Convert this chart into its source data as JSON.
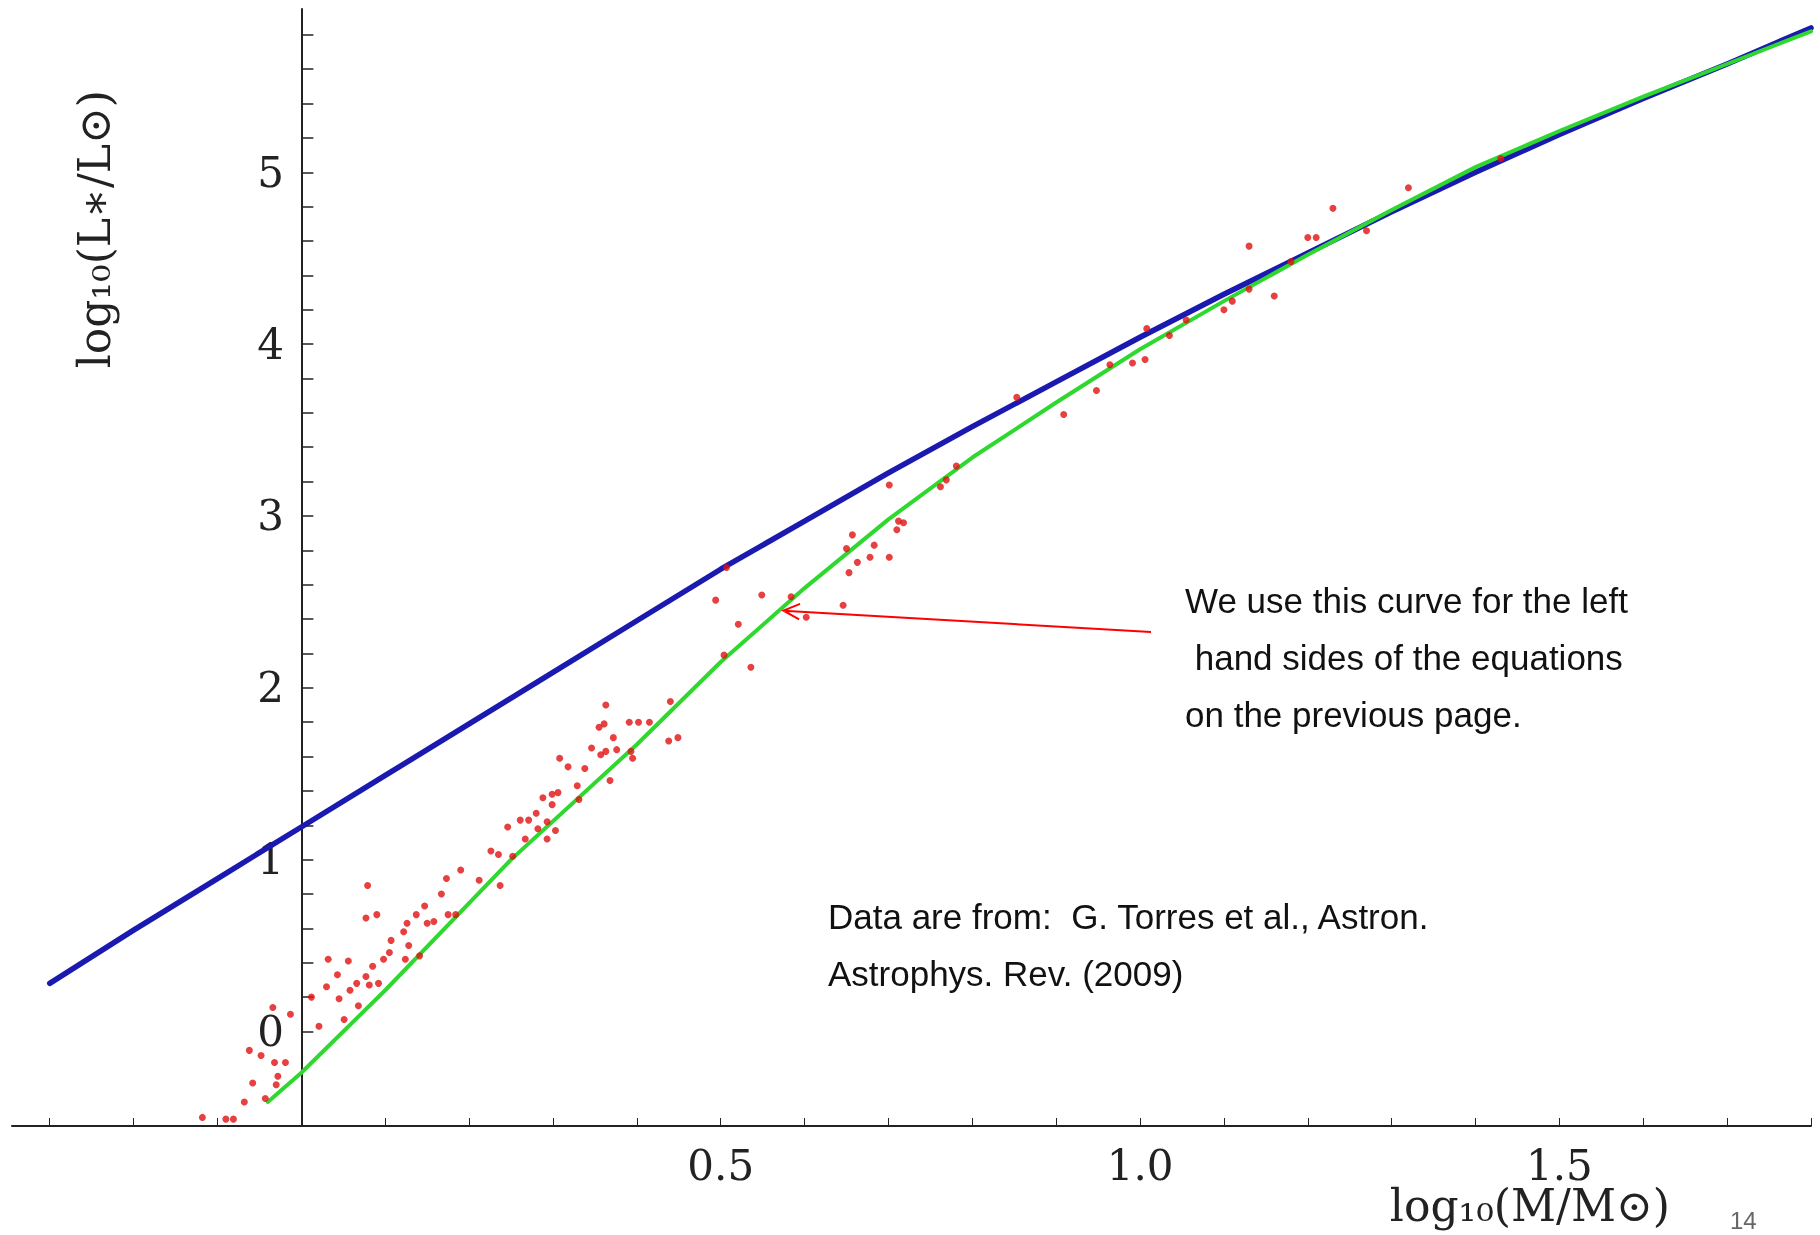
{
  "chart_data": {
    "type": "scatter",
    "xlabel": "log₁₀(M/M⊙)",
    "ylabel": "log₁₀(L∗/L⊙)",
    "xlim": [
      -0.345,
      1.8
    ],
    "ylim": [
      -0.55,
      5.95
    ],
    "xticks": [
      {
        "value": -0.3,
        "label": null
      },
      {
        "value": -0.2,
        "label": null
      },
      {
        "value": -0.1,
        "label": null
      },
      {
        "value": 0,
        "label": null
      },
      {
        "value": 0.1,
        "label": null
      },
      {
        "value": 0.2,
        "label": null
      },
      {
        "value": 0.3,
        "label": null
      },
      {
        "value": 0.4,
        "label": null
      },
      {
        "value": 0.5,
        "label": "0.5"
      },
      {
        "value": 0.6,
        "label": null
      },
      {
        "value": 0.7,
        "label": null
      },
      {
        "value": 0.8,
        "label": null
      },
      {
        "value": 0.9,
        "label": null
      },
      {
        "value": 1.0,
        "label": "1.0"
      },
      {
        "value": 1.1,
        "label": null
      },
      {
        "value": 1.2,
        "label": null
      },
      {
        "value": 1.3,
        "label": null
      },
      {
        "value": 1.4,
        "label": null
      },
      {
        "value": 1.5,
        "label": "1.5"
      },
      {
        "value": 1.6,
        "label": null
      },
      {
        "value": 1.7,
        "label": null
      },
      {
        "value": 1.8,
        "label": null
      }
    ],
    "yticks": [
      0,
      {
        "value": 0.2,
        "label": null
      },
      {
        "value": 0.4,
        "label": null
      },
      {
        "value": 0.6,
        "label": null
      },
      {
        "value": 0.8,
        "label": null
      },
      1,
      {
        "value": 1.2,
        "label": null
      },
      {
        "value": 1.4,
        "label": null
      },
      {
        "value": 1.6,
        "label": null
      },
      {
        "value": 1.8,
        "label": null
      },
      2,
      {
        "value": 2.2,
        "label": null
      },
      {
        "value": 2.4,
        "label": null
      },
      {
        "value": 2.6,
        "label": null
      },
      {
        "value": 2.8,
        "label": null
      },
      3,
      {
        "value": 3.2,
        "label": null
      },
      {
        "value": 3.4,
        "label": null
      },
      {
        "value": 3.6,
        "label": null
      },
      {
        "value": 3.8,
        "label": null
      },
      4,
      {
        "value": 4.2,
        "label": null
      },
      {
        "value": 4.4,
        "label": null
      },
      {
        "value": 4.6,
        "label": null
      },
      {
        "value": 4.8,
        "label": null
      },
      5,
      {
        "value": 5.2,
        "label": null
      },
      {
        "value": 5.4,
        "label": null
      },
      {
        "value": 5.6,
        "label": null
      },
      {
        "value": 5.8,
        "label": null
      }
    ],
    "grid": false,
    "series": [
      {
        "type": "line",
        "color": "#1a1ab0",
        "marker": "none",
        "line_style": "solid",
        "x": [
          -0.3,
          -0.2,
          -0.1,
          0,
          0.1,
          0.2,
          0.3,
          0.4,
          0.5,
          0.6,
          0.7,
          0.8,
          0.9,
          1.0,
          1.1,
          1.2,
          1.3,
          1.4,
          1.5,
          1.6,
          1.7,
          1.8
        ],
        "values": [
          0.28,
          0.59,
          0.89,
          1.19,
          1.49,
          1.79,
          2.09,
          2.39,
          2.69,
          2.97,
          3.25,
          3.52,
          3.78,
          4.04,
          4.29,
          4.53,
          4.77,
          5.0,
          5.22,
          5.43,
          5.63,
          5.84
        ]
      },
      {
        "type": "line",
        "color": "#2fd82f",
        "marker": "none",
        "line_style": "solid",
        "x": [
          -0.04,
          0,
          0.1,
          0.25,
          0.4,
          0.5,
          0.6,
          0.7,
          0.8,
          0.9,
          1.0,
          1.1,
          1.2,
          1.3,
          1.4,
          1.5,
          1.6,
          1.7,
          1.8
        ],
        "values": [
          -0.41,
          -0.24,
          0.24,
          1.0,
          1.67,
          2.15,
          2.58,
          2.98,
          3.34,
          3.66,
          3.97,
          4.25,
          4.52,
          4.78,
          5.03,
          5.24,
          5.44,
          5.63,
          5.82
        ]
      },
      {
        "color": "#e01010",
        "marker": "circle",
        "x": [
          -0.118,
          -0.09,
          -0.081,
          -0.068,
          -0.058,
          -0.062,
          -0.048,
          -0.043,
          -0.03,
          -0.028,
          -0.032,
          -0.019,
          -0.034,
          -0.013,
          0.012,
          0.021,
          0.032,
          0.03,
          0.043,
          0.056,
          0.045,
          0.058,
          0.051,
          0.068,
          0.066,
          0.077,
          0.085,
          0.081,
          0.092,
          0.098,
          0.107,
          0.105,
          0.079,
          0.077,
          0.09,
          0.122,
          0.126,
          0.128,
          0.124,
          0.141,
          0.137,
          0.147,
          0.15,
          0.158,
          0.167,
          0.173,
          0.175,
          0.184,
          0.19,
          0.212,
          0.237,
          0.226,
          0.235,
          0.252,
          0.246,
          0.261,
          0.271,
          0.267,
          0.28,
          0.282,
          0.293,
          0.293,
          0.303,
          0.288,
          0.299,
          0.306,
          0.299,
          0.308,
          0.318,
          0.329,
          0.331,
          0.338,
          0.346,
          0.355,
          0.361,
          0.363,
          0.357,
          0.363,
          0.372,
          0.376,
          0.368,
          0.391,
          0.402,
          0.415,
          0.393,
          0.395,
          0.438,
          0.449,
          0.44,
          0.504,
          0.536,
          0.494,
          0.507,
          0.521,
          0.549,
          0.584,
          0.602,
          0.646,
          0.65,
          0.657,
          0.653,
          0.663,
          0.678,
          0.683,
          0.701,
          0.701,
          0.71,
          0.712,
          0.718,
          0.762,
          0.769,
          0.781,
          0.853,
          0.909,
          0.948,
          0.964,
          0.991,
          1.006,
          1.008,
          1.035,
          1.055,
          1.1,
          1.11,
          1.13,
          1.13,
          1.16,
          1.18,
          1.2,
          1.21,
          1.23,
          1.27,
          1.32,
          1.43
        ],
        "values": [
          -0.5,
          -0.51,
          -0.51,
          -0.41,
          -0.3,
          -0.11,
          -0.14,
          -0.39,
          -0.31,
          -0.26,
          -0.18,
          -0.18,
          0.14,
          0.1,
          0.2,
          0.03,
          0.42,
          0.26,
          0.33,
          0.41,
          0.19,
          0.24,
          0.07,
          0.15,
          0.28,
          0.32,
          0.38,
          0.27,
          0.28,
          0.42,
          0.53,
          0.46,
          0.85,
          0.66,
          0.68,
          0.58,
          0.63,
          0.5,
          0.42,
          0.44,
          0.68,
          0.73,
          0.63,
          0.64,
          0.8,
          0.89,
          0.68,
          0.68,
          0.94,
          0.88,
          0.85,
          1.05,
          1.03,
          1.02,
          1.19,
          1.23,
          1.23,
          1.12,
          1.27,
          1.18,
          1.12,
          1.22,
          1.17,
          1.36,
          1.38,
          1.39,
          1.32,
          1.59,
          1.54,
          1.43,
          1.35,
          1.53,
          1.65,
          1.77,
          1.79,
          1.9,
          1.61,
          1.63,
          1.71,
          1.64,
          1.46,
          1.8,
          1.8,
          1.8,
          1.63,
          1.59,
          1.69,
          1.71,
          1.92,
          2.19,
          2.12,
          2.51,
          2.7,
          2.37,
          2.54,
          2.53,
          2.41,
          2.48,
          2.81,
          2.89,
          2.67,
          2.73,
          2.76,
          2.83,
          2.76,
          3.18,
          2.92,
          2.97,
          2.96,
          3.17,
          3.21,
          3.29,
          3.69,
          3.59,
          3.73,
          3.88,
          3.89,
          3.91,
          4.09,
          4.05,
          4.14,
          4.2,
          4.25,
          4.57,
          4.32,
          4.28,
          4.48,
          4.62,
          4.62,
          4.79,
          4.66,
          4.91,
          5.08
        ]
      }
    ],
    "annotations": [
      {
        "text": "We use this curve for the left hand sides of the equations on the previous page.",
        "x": 0.57,
        "y": 2.45
      },
      "Data are from:  G. Torres et al., Astron. Astrophys. Rev. (2009)",
      "14"
    ]
  }
}
